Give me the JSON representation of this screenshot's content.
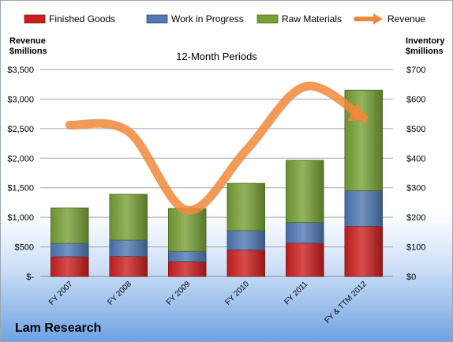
{
  "chart_data": {
    "type": "bar",
    "stacked": true,
    "subtitle": "12-Month Periods",
    "categories": [
      "FY 2007",
      "FY 2008",
      "FY 2009",
      "FY 2010",
      "FY 2011",
      "FY & TTM 2012"
    ],
    "series": [
      {
        "name": "Finished Goods",
        "axis": "right",
        "color": "#cc1f1f",
        "values": [
          67,
          68,
          50,
          90,
          113,
          170
        ]
      },
      {
        "name": "Work in Progress",
        "axis": "right",
        "color": "#4f78b4",
        "values": [
          45,
          55,
          35,
          65,
          70,
          120
        ]
      },
      {
        "name": "Raw Materials",
        "axis": "right",
        "color": "#77a035",
        "values": [
          120,
          155,
          145,
          160,
          210,
          340
        ]
      },
      {
        "name": "Revenue",
        "axis": "left",
        "type": "line",
        "color": "#f0883a",
        "values": [
          2560,
          2450,
          1120,
          2130,
          3210,
          2680
        ]
      }
    ],
    "left_axis": {
      "title": [
        "Revenue",
        "$millions"
      ],
      "ylim": [
        0,
        3500
      ],
      "ticks": [
        "$-",
        "$500",
        "$1,000",
        "$1,500",
        "$2,000",
        "$2,500",
        "$3,000",
        "$3,500"
      ]
    },
    "right_axis": {
      "title": [
        "Inventory",
        "$millions"
      ],
      "ylim": [
        0,
        700
      ],
      "ticks": [
        "$0",
        "$100",
        "$200",
        "$300",
        "$400",
        "$500",
        "$600",
        "$700"
      ]
    },
    "legend_position": "top",
    "grid": true
  },
  "company": "Lam Research"
}
